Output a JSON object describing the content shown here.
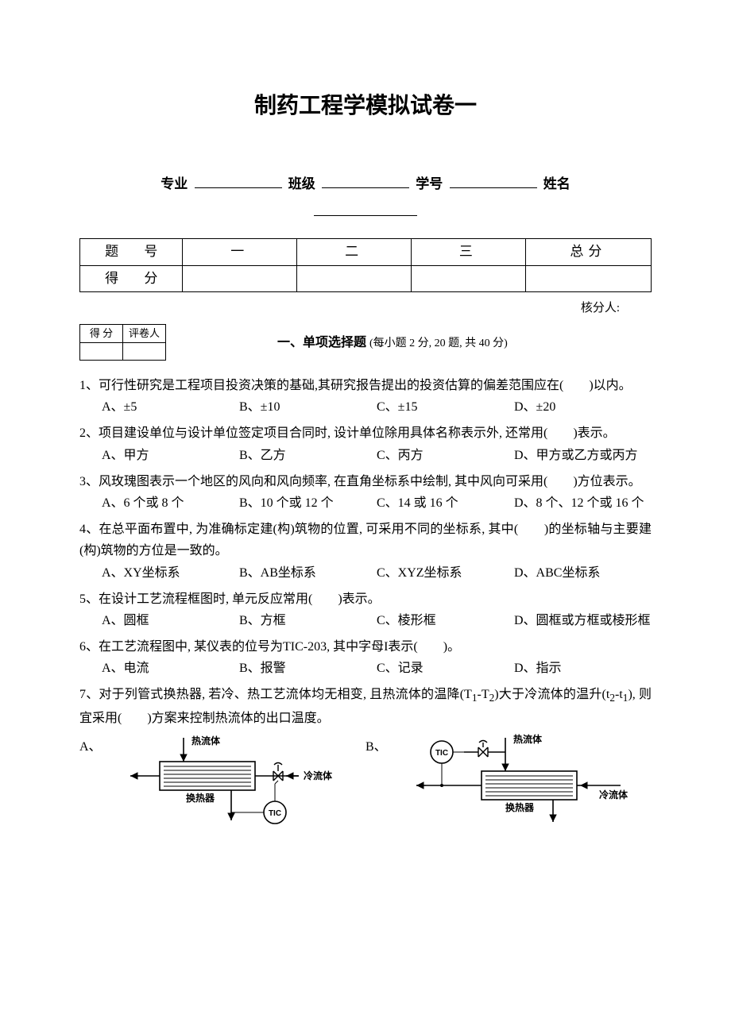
{
  "title": "制药工程学模拟试卷一",
  "info": {
    "major_label": "专业",
    "class_label": "班级",
    "id_label": "学号",
    "name_label": "姓名"
  },
  "score_table": {
    "row1": [
      "题  号",
      "一",
      "二",
      "三",
      "总分"
    ],
    "row2_label": "得  分"
  },
  "checker": "核分人:",
  "mini_table": {
    "c1": "得 分",
    "c2": "评卷人"
  },
  "section1": {
    "title": "一、单项选择题",
    "note": "(每小题 2 分, 20 题, 共 40 分)"
  },
  "questions": [
    {
      "n": "1",
      "stem": "、可行性研究是工程项目投资决策的基础,其研究报告提出的投资估算的偏差范围应在(　　)以内。",
      "opts": [
        "A、±5",
        "B、±10",
        "C、±15",
        "D、±20"
      ]
    },
    {
      "n": "2",
      "stem": "、项目建设单位与设计单位签定项目合同时, 设计单位除用具体名称表示外, 还常用(　　)表示。",
      "opts": [
        "A、甲方",
        "B、乙方",
        "C、丙方",
        "D、甲方或乙方或丙方"
      ],
      "wrap_last": true
    },
    {
      "n": "3",
      "stem": "、风玫瑰图表示一个地区的风向和风向频率, 在直角坐标系中绘制, 其中风向可采用(　　)方位表示。",
      "opts": [
        "A、6 个或 8 个",
        "B、10 个或 12 个",
        "C、14 或 16 个",
        "D、8 个、12 个或 16 个"
      ],
      "wrap_last": true
    },
    {
      "n": "4",
      "stem": "、在总平面布置中, 为准确标定建(构)筑物的位置, 可采用不同的坐标系, 其中(　　)的坐标轴与主要建(构)筑物的方位是一致的。",
      "opts": [
        "A、XY坐标系",
        "B、AB坐标系",
        "C、XYZ坐标系",
        "D、ABC坐标系"
      ],
      "wrap_last": true
    },
    {
      "n": "5",
      "stem": "、在设计工艺流程框图时, 单元反应常用(　　)表示。",
      "opts": [
        "A、圆框",
        "B、方框",
        "C、棱形框",
        "D、圆框或方框或棱形框"
      ],
      "wrap_last": true
    },
    {
      "n": "6",
      "stem": "、在工艺流程图中, 某仪表的位号为TIC-203, 其中字母I表示(　　)。",
      "opts": [
        "A、电流",
        "B、报警",
        "C、记录",
        "D、指示"
      ]
    },
    {
      "n": "7",
      "stem_html": "、对于列管式换热器, 若冷、热工艺流体均无相变, 且热流体的温降(T<sub>1</sub>-T<sub>2</sub>)大于冷流体的温升(t<sub>2</sub>-t<sub>1</sub>), 则宜采用(　　)方案来控制热流体的出口温度。"
    }
  ],
  "diagram": {
    "labels": {
      "hot": "热流体",
      "cold": "冷流体",
      "ex": "换热器",
      "tic": "TIC"
    },
    "optA": "A、",
    "optB": "B、",
    "colors": {
      "stroke": "#000000",
      "fill_white": "#ffffff"
    }
  }
}
